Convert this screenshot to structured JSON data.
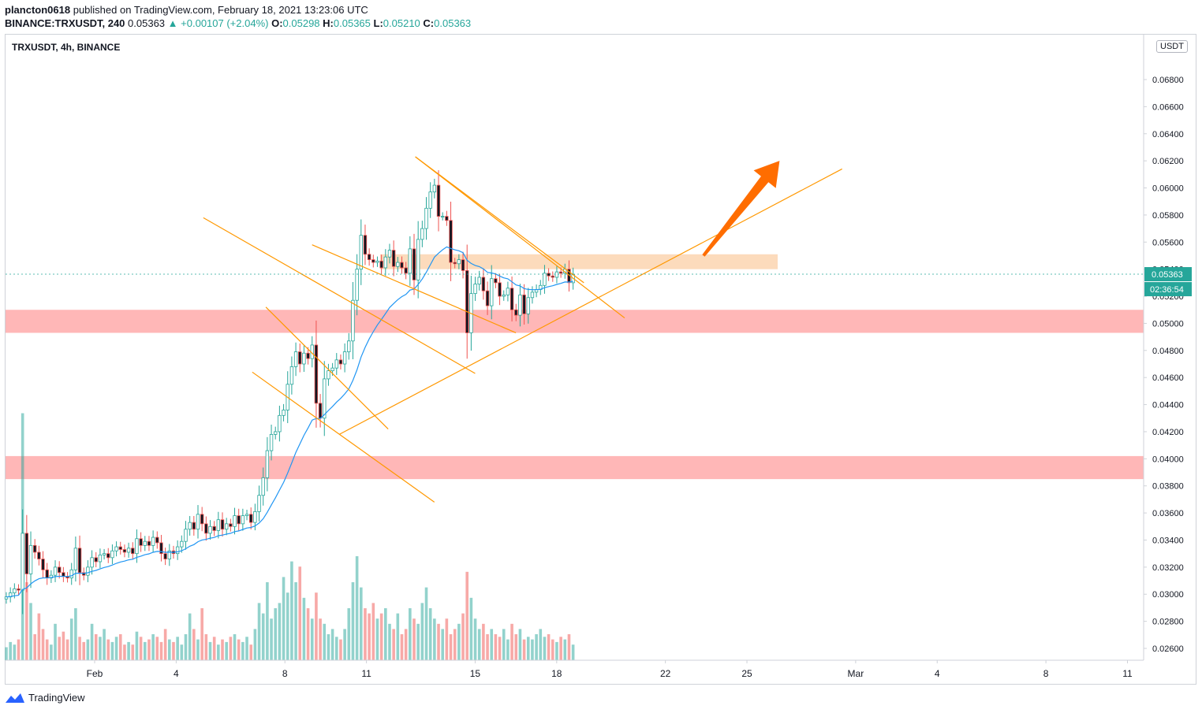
{
  "header": {
    "publisher": "plancton0618",
    "published_text": "published on TradingView.com, February 18, 2021 13:23:06 UTC",
    "symbol_line": "BINANCE:TRXUSDT, 240",
    "last_price": "0.05363",
    "change": "▲ +0.00107 (+2.04%)",
    "o_label": "O:",
    "o_value": "0.05298",
    "h_label": "H:",
    "h_value": "0.05365",
    "l_label": "L:",
    "l_value": "0.05210",
    "c_label": "C:",
    "c_value": "0.05363"
  },
  "chart_title": "TRXUSDT, 4h, BINANCE",
  "unit_badge": "USDT",
  "price_badge": "0.05363",
  "countdown_badge": "02:36:54",
  "footer": {
    "brand": "TradingView"
  },
  "colors": {
    "up": "#26a69a",
    "down": "#ef5350",
    "ema": "#2196f3",
    "channel": "#ff9800",
    "support_zone": "#ffb3b3",
    "resistance_zone": "#fbd5b0",
    "arrow": "#ff6d00"
  },
  "chart_data": {
    "type": "candlestick",
    "title": "TRXUSDT, 4h, BINANCE",
    "y_axis": {
      "range": [
        0.025,
        0.07
      ],
      "ticks": [
        "0.02600",
        "0.02800",
        "0.03000",
        "0.03200",
        "0.03400",
        "0.03600",
        "0.03800",
        "0.04000",
        "0.04200",
        "0.04400",
        "0.04600",
        "0.04800",
        "0.05000",
        "0.05200",
        "0.05400",
        "0.05600",
        "0.05800",
        "0.06000",
        "0.06200",
        "0.06400",
        "0.06600",
        "0.06800"
      ],
      "unit": "USDT"
    },
    "x_axis": {
      "labels": [
        {
          "label": "Feb",
          "day": 1
        },
        {
          "label": "4",
          "day": 4
        },
        {
          "label": "8",
          "day": 8
        },
        {
          "label": "11",
          "day": 11
        },
        {
          "label": "15",
          "day": 15
        },
        {
          "label": "18",
          "day": 18
        },
        {
          "label": "22",
          "day": 22
        },
        {
          "label": "25",
          "day": 25
        },
        {
          "label": "Mar",
          "day": 29
        },
        {
          "label": "4",
          "day": 32
        },
        {
          "label": "8",
          "day": 36
        },
        {
          "label": "11",
          "day": 39
        }
      ]
    },
    "close_series": [
      0.0298,
      0.0301,
      0.0304,
      0.0303,
      0.0345,
      0.0315,
      0.0336,
      0.0331,
      0.0326,
      0.0318,
      0.0312,
      0.0314,
      0.032,
      0.0316,
      0.0313,
      0.0312,
      0.0318,
      0.0334,
      0.0316,
      0.0314,
      0.032,
      0.0327,
      0.0324,
      0.0329,
      0.033,
      0.0327,
      0.0332,
      0.0335,
      0.0333,
      0.0331,
      0.0334,
      0.033,
      0.0341,
      0.0336,
      0.0339,
      0.0336,
      0.0342,
      0.0338,
      0.033,
      0.0326,
      0.0332,
      0.033,
      0.0335,
      0.0339,
      0.0348,
      0.0353,
      0.0348,
      0.0359,
      0.0352,
      0.0345,
      0.035,
      0.0347,
      0.0355,
      0.0348,
      0.0352,
      0.035,
      0.0358,
      0.0352,
      0.0358,
      0.0359,
      0.0353,
      0.0361,
      0.0373,
      0.0386,
      0.0406,
      0.0418,
      0.042,
      0.0432,
      0.0436,
      0.0455,
      0.0468,
      0.0479,
      0.047,
      0.0478,
      0.0474,
      0.0484,
      0.0441,
      0.043,
      0.0459,
      0.0465,
      0.0467,
      0.0473,
      0.047,
      0.0479,
      0.0487,
      0.0517,
      0.054,
      0.0565,
      0.0551,
      0.0547,
      0.0545,
      0.0546,
      0.0541,
      0.0549,
      0.0554,
      0.0542,
      0.0545,
      0.0541,
      0.0537,
      0.0555,
      0.0532,
      0.0562,
      0.057,
      0.0585,
      0.0597,
      0.0602,
      0.0579,
      0.0579,
      0.0576,
      0.0545,
      0.0544,
      0.0547,
      0.0539,
      0.0493,
      0.0522,
      0.0529,
      0.0534,
      0.0524,
      0.0513,
      0.0533,
      0.053,
      0.052,
      0.0521,
      0.0526,
      0.051,
      0.0506,
      0.0521,
      0.0507,
      0.0519,
      0.0523,
      0.0525,
      0.0528,
      0.0537,
      0.0535,
      0.0534,
      0.0538,
      0.0537,
      0.054,
      0.053,
      0.0536
    ],
    "ema_period": 20,
    "volume_relative": [
      0.05,
      0.07,
      0.06,
      0.08,
      0.95,
      0.3,
      0.22,
      0.1,
      0.18,
      0.12,
      0.08,
      0.06,
      0.14,
      0.09,
      0.11,
      0.08,
      0.16,
      0.2,
      0.09,
      0.07,
      0.08,
      0.14,
      0.1,
      0.09,
      0.12,
      0.08,
      0.07,
      0.09,
      0.1,
      0.06,
      0.07,
      0.06,
      0.11,
      0.09,
      0.07,
      0.08,
      0.1,
      0.09,
      0.07,
      0.12,
      0.08,
      0.07,
      0.09,
      0.06,
      0.1,
      0.18,
      0.12,
      0.08,
      0.2,
      0.1,
      0.07,
      0.09,
      0.06,
      0.08,
      0.07,
      0.09,
      0.1,
      0.08,
      0.07,
      0.09,
      0.06,
      0.12,
      0.22,
      0.18,
      0.3,
      0.16,
      0.2,
      0.22,
      0.32,
      0.26,
      0.38,
      0.3,
      0.36,
      0.24,
      0.2,
      0.16,
      0.26,
      0.16,
      0.14,
      0.1,
      0.12,
      0.09,
      0.08,
      0.12,
      0.2,
      0.3,
      0.4,
      0.28,
      0.2,
      0.18,
      0.22,
      0.16,
      0.18,
      0.2,
      0.14,
      0.12,
      0.18,
      0.1,
      0.12,
      0.2,
      0.16,
      0.14,
      0.22,
      0.28,
      0.2,
      0.16,
      0.14,
      0.12,
      0.16,
      0.1,
      0.12,
      0.14,
      0.18,
      0.34,
      0.24,
      0.16,
      0.12,
      0.14,
      0.1,
      0.12,
      0.1,
      0.09,
      0.12,
      0.08,
      0.14,
      0.1,
      0.12,
      0.08,
      0.09,
      0.08,
      0.1,
      0.12,
      0.09,
      0.1,
      0.08,
      0.07,
      0.09,
      0.08,
      0.1,
      0.06
    ],
    "zones": [
      {
        "kind": "resistance",
        "from": 0.054,
        "to": 0.0551
      },
      {
        "kind": "support",
        "from": 0.0493,
        "to": 0.051
      },
      {
        "kind": "support",
        "from": 0.0385,
        "to": 0.0402
      }
    ],
    "annotations": [
      {
        "kind": "descending-channel",
        "lines": [
          [
            [
              9.0,
              0.0558
            ],
            [
              16.5,
              0.0493
            ]
          ],
          [
            [
              5.0,
              0.0578
            ],
            [
              15.0,
              0.0463
            ]
          ]
        ]
      },
      {
        "kind": "descending-channel",
        "lines": [
          [
            [
              7.3,
              0.0512
            ],
            [
              11.8,
              0.0422
            ]
          ],
          [
            [
              6.8,
              0.0464
            ],
            [
              13.5,
              0.0368
            ]
          ]
        ]
      },
      {
        "kind": "descending-channel",
        "lines": [
          [
            [
              12.8,
              0.0623
            ],
            [
              20.5,
              0.0504
            ]
          ],
          [
            [
              12.8,
              0.0623
            ],
            [
              19.0,
              0.053
            ]
          ]
        ]
      },
      {
        "kind": "ascending-trendline",
        "from": [
          10.0,
          0.0418
        ],
        "to": [
          28.5,
          0.0614
        ]
      },
      {
        "kind": "arrow",
        "direction": "up",
        "from": [
          23.4,
          0.055
        ],
        "to": [
          26.2,
          0.062
        ]
      }
    ],
    "last_price": 0.05363
  }
}
